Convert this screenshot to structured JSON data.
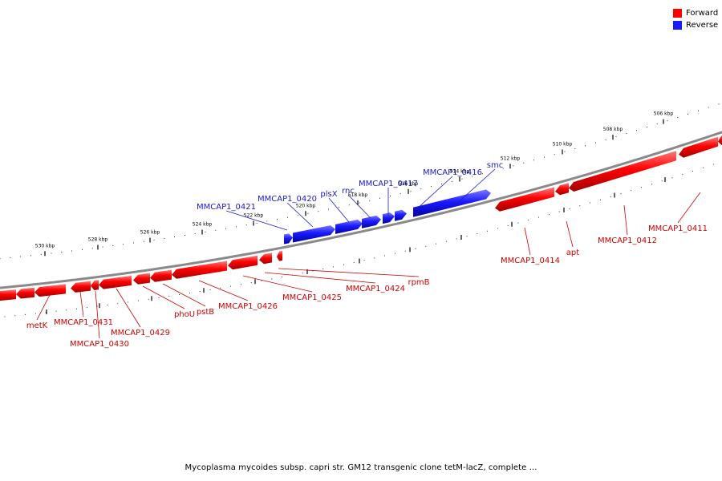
{
  "legend": {
    "forward_label": "Forward",
    "reverse_label": "Reverse",
    "forward_color": "#ff0000",
    "reverse_color": "#1a1aff"
  },
  "caption": "Mycoplasma mycoides subsp. capri str. GM12 transgenic clone tetM-lacZ, complete ...",
  "colors": {
    "forward": "#ff0000",
    "reverse": "#1a1aff",
    "forward_label": "#cc0000",
    "reverse_label": "#1a1acc",
    "backbone": "#8a8a8a"
  },
  "ticks": [
    "530 kbp",
    "528 kbp",
    "526 kbp",
    "524 kbp",
    "522 kbp",
    "520 kbp",
    "518 kbp",
    "516 kbp",
    "514 kbp",
    "512 kbp",
    "510 kbp",
    "508 kbp",
    "506 kbp"
  ],
  "reverse_genes": [
    {
      "id": "g-0421",
      "label": "MMCAP1_0421"
    },
    {
      "id": "g-0420",
      "label": "MMCAP1_0420"
    },
    {
      "id": "g-plsX",
      "label": "plsX"
    },
    {
      "id": "g-rnc",
      "label": "rnc"
    },
    {
      "id": "g-0417",
      "label": "MMCAP1_0417"
    },
    {
      "id": "g-0416",
      "label": "MMCAP1_0416"
    },
    {
      "id": "g-smc",
      "label": "smc"
    }
  ],
  "forward_genes": [
    {
      "id": "g-metK",
      "label": "metK"
    },
    {
      "id": "g-0431",
      "label": "MMCAP1_0431"
    },
    {
      "id": "g-0430",
      "label": "MMCAP1_0430"
    },
    {
      "id": "g-0429",
      "label": "MMCAP1_0429"
    },
    {
      "id": "g-phoU",
      "label": "phoU"
    },
    {
      "id": "g-pstB",
      "label": "pstB"
    },
    {
      "id": "g-0426",
      "label": "MMCAP1_0426"
    },
    {
      "id": "g-0425",
      "label": "MMCAP1_0425"
    },
    {
      "id": "g-0424",
      "label": "MMCAP1_0424"
    },
    {
      "id": "g-rpmB",
      "label": "rpmB"
    },
    {
      "id": "g-0414",
      "label": "MMCAP1_0414"
    },
    {
      "id": "g-apt",
      "label": "apt"
    },
    {
      "id": "g-0412",
      "label": "MMCAP1_0412"
    },
    {
      "id": "g-0411",
      "label": "MMCAP1_0411"
    }
  ]
}
